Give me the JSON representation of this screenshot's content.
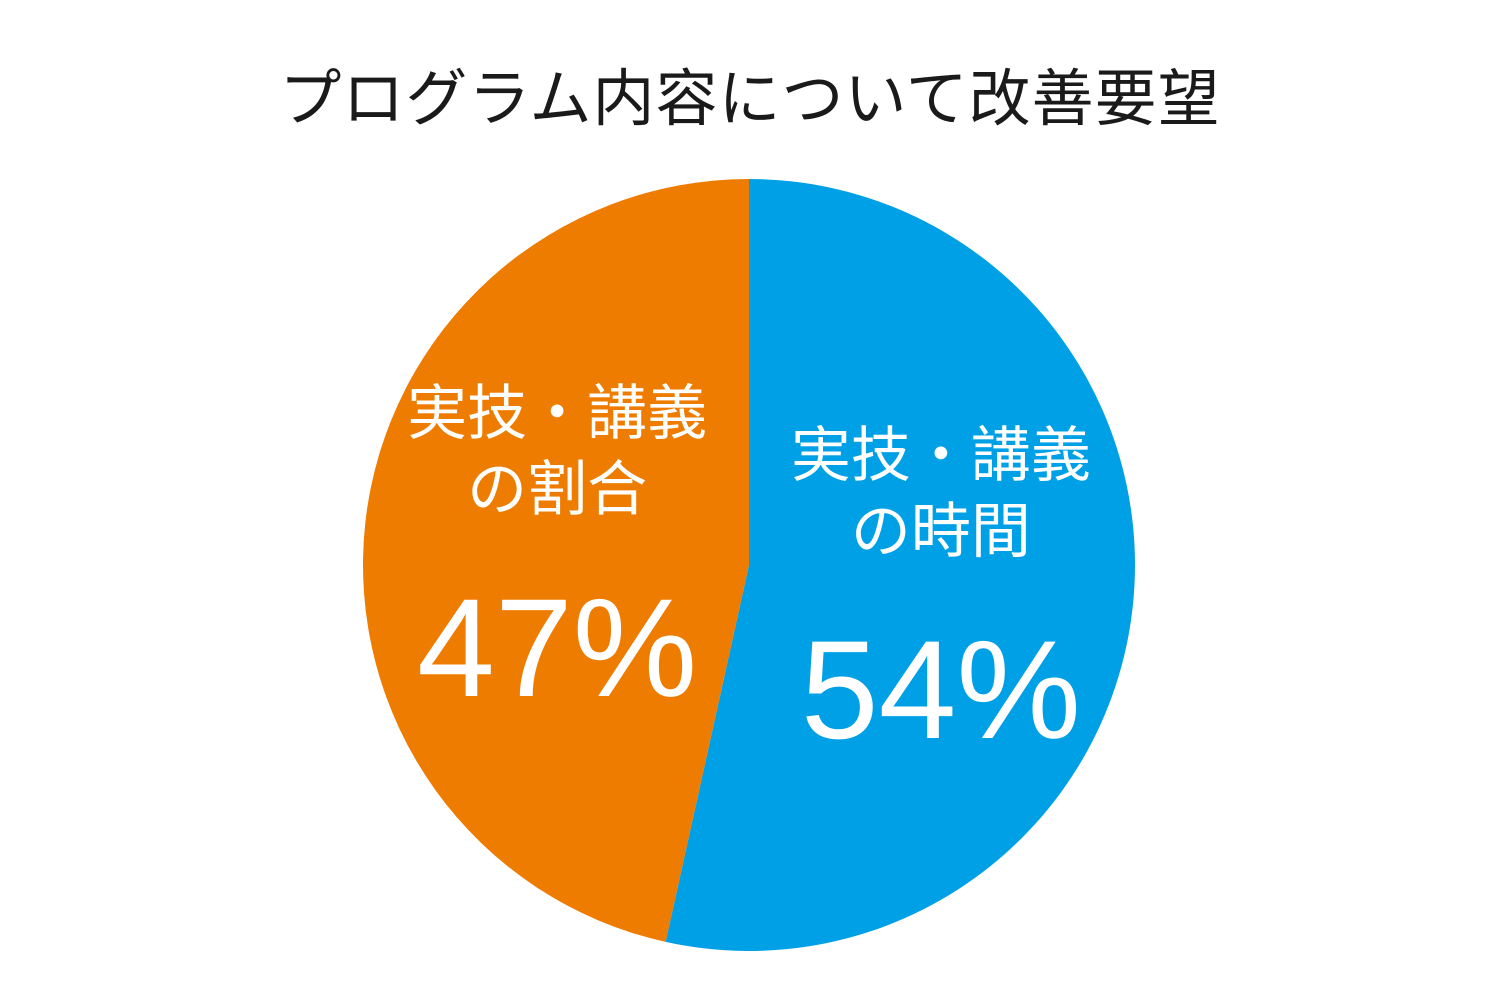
{
  "chart_data": {
    "type": "pie",
    "title": "プログラム内容について改善要望",
    "slices": [
      {
        "label_lines": [
          "実技・講義",
          "の時間"
        ],
        "value": 54,
        "value_label": "54%",
        "color": "#00A0E6"
      },
      {
        "label_lines": [
          "実技・講義",
          "の割合"
        ],
        "value": 47,
        "value_label": "47%",
        "color": "#EE7C00"
      }
    ],
    "start": "top",
    "direction": "clockwise",
    "legend": "none"
  }
}
